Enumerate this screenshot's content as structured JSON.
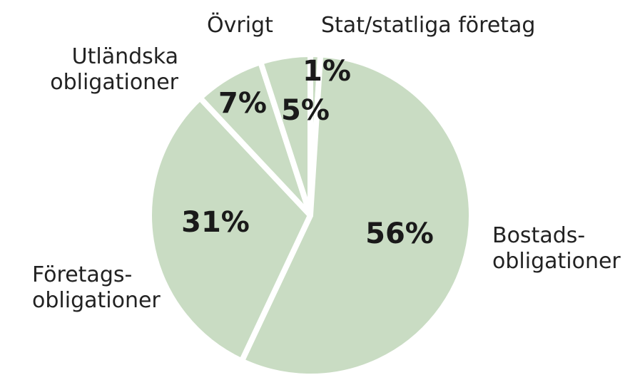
{
  "chart_data": {
    "type": "pie",
    "categories": [
      "Stat/statliga företag",
      "Bostads-\nobligationer",
      "Företags-\nobligationer",
      "Utländska\nobligationer",
      "Övrigt"
    ],
    "values": [
      1,
      56,
      31,
      7,
      5
    ],
    "value_labels": [
      "1%",
      "56%",
      "31%",
      "7%",
      "5%"
    ],
    "color": "#c9dcc3"
  }
}
